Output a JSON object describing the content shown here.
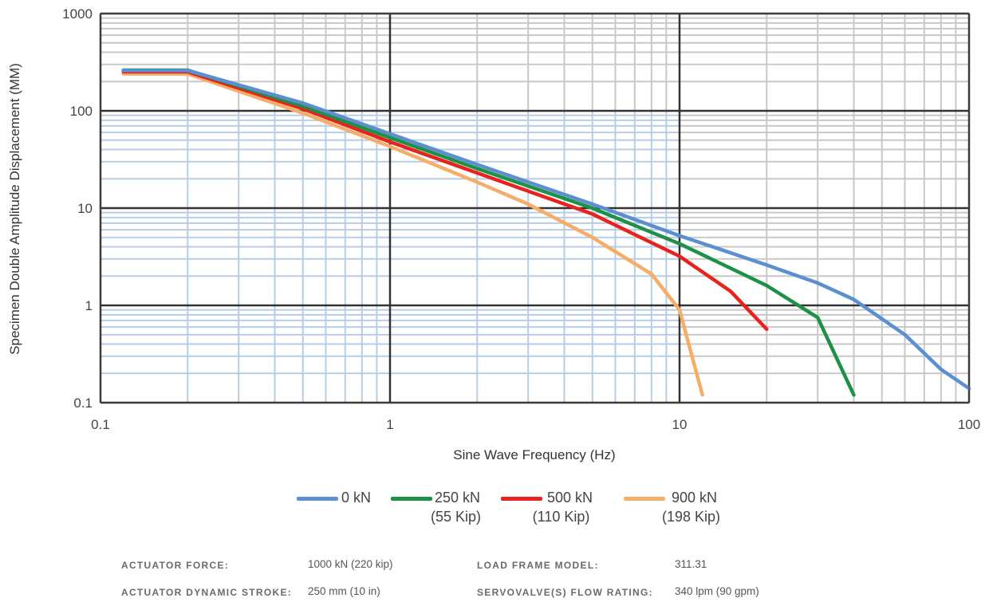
{
  "chart_data": {
    "type": "line",
    "x_scale": "log",
    "y_scale": "log",
    "xlim": [
      0.1,
      100
    ],
    "ylim": [
      0.1,
      1000
    ],
    "xlabel": "Sine Wave Frequency (Hz)",
    "ylabel": "Specimen Double Amplitude Displacement (MM)",
    "x_ticks": [
      "0.1",
      "1",
      "10",
      "100"
    ],
    "y_ticks": [
      "0.1",
      "1",
      "10",
      "100",
      "1000"
    ],
    "grid": true,
    "legend_position": "bottom-center",
    "series": [
      {
        "name": "0 kN",
        "color": "#5b8fd0",
        "x": [
          0.12,
          0.2,
          0.5,
          1,
          2,
          5,
          10,
          20,
          30,
          40,
          60,
          80,
          100
        ],
        "y": [
          260,
          260,
          120,
          58,
          28,
          11,
          5.2,
          2.6,
          1.7,
          1.15,
          0.5,
          0.22,
          0.14
        ]
      },
      {
        "name": "250 kN",
        "color": "#1e9146",
        "x": [
          0.12,
          0.2,
          0.5,
          1,
          2,
          5,
          10,
          20,
          30,
          40
        ],
        "y": [
          262,
          262,
          112,
          53,
          25.5,
          10,
          4.3,
          1.6,
          0.75,
          0.12
        ]
      },
      {
        "name": "500 kN",
        "color": "#e8231e",
        "x": [
          0.12,
          0.2,
          0.5,
          1,
          2,
          5,
          10,
          15,
          20
        ],
        "y": [
          252,
          252,
          105,
          48,
          23,
          8.7,
          3.2,
          1.4,
          0.57
        ]
      },
      {
        "name": "900 kN",
        "color": "#f5ae6a",
        "x": [
          0.12,
          0.2,
          0.5,
          1,
          2,
          3,
          5,
          8,
          10,
          12
        ],
        "y": [
          240,
          240,
          95,
          43,
          18.5,
          11,
          5,
          2.1,
          0.9,
          0.12
        ]
      }
    ]
  },
  "legend": [
    {
      "label": "0 kN",
      "sub": "",
      "color": "#5b8fd0"
    },
    {
      "label": "250 kN",
      "sub": "(55 Kip)",
      "color": "#1e9146"
    },
    {
      "label": "500 kN",
      "sub": "(110 Kip)",
      "color": "#e8231e"
    },
    {
      "label": "900 kN",
      "sub": "(198 Kip)",
      "color": "#f5ae6a"
    }
  ],
  "specs": {
    "actuator_force_label": "ACTUATOR FORCE:",
    "actuator_force_value": "1000 kN (220 kip)",
    "stroke_label": "ACTUATOR DYNAMIC STROKE:",
    "stroke_value": "250 mm (10 in)",
    "frame_label": "LOAD FRAME MODEL:",
    "frame_value": "311.31",
    "flow_label": "SERVOVALVE(S) FLOW RATING:",
    "flow_value": "340 lpm (90 gpm)"
  }
}
